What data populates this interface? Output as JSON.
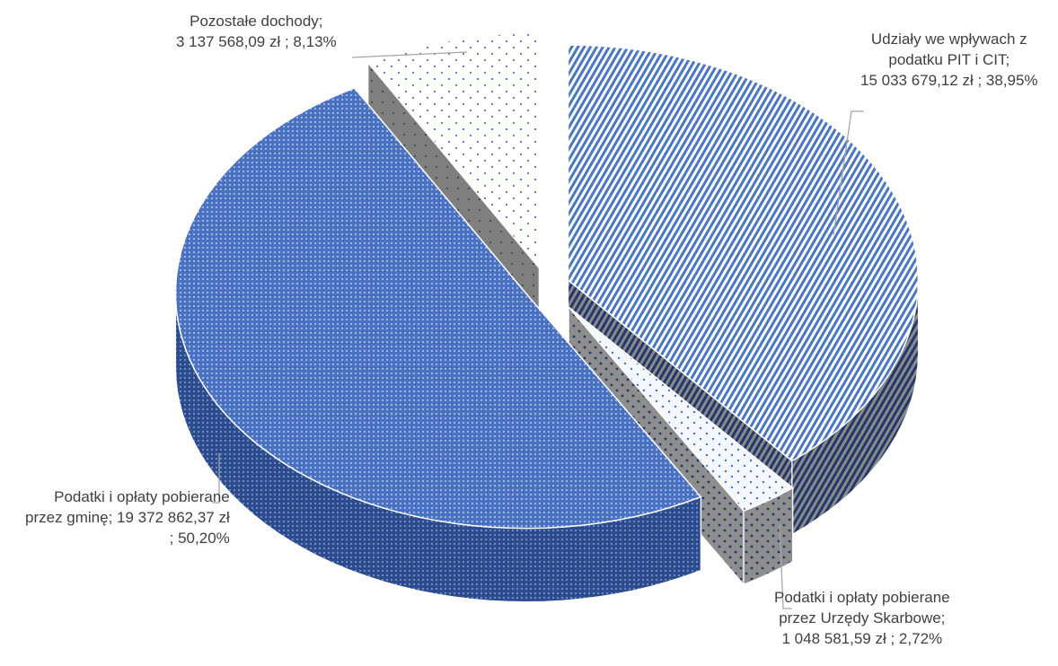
{
  "chart_data": {
    "type": "pie",
    "title": "",
    "currency_unit": "zł",
    "slices": [
      {
        "label": "Udziały we wpływach z podatku PIT i CIT",
        "value": 15033679.12,
        "percent": 38.95,
        "label_lines": [
          "Udziały we wpływach z",
          "podatku PIT i CIT;",
          "15 033 679,12 zł ; 38,95%"
        ],
        "pattern": "diagonal-stripes",
        "color": "#4472c4"
      },
      {
        "label": "Podatki i opłaty pobierane przez Urzędy Skarbowe",
        "value": 1048581.59,
        "percent": 2.72,
        "label_lines": [
          "Podatki i opłaty pobierane",
          "przez Urzędy Skarbowe;",
          "1 048 581,59 zł ; 2,72%"
        ],
        "pattern": "sparse-dots",
        "color": "#4472c4"
      },
      {
        "label": "Podatki i opłaty pobierane przez gminę",
        "value": 19372862.37,
        "percent": 50.2,
        "label_lines": [
          "Podatki i opłaty pobierane",
          "przez gminę;  19 372 862,37 zł",
          "; 50,20%"
        ],
        "pattern": "fine-grid",
        "color": "#4472c4"
      },
      {
        "label": "Pozostałe dochody",
        "value": 3137568.09,
        "percent": 8.13,
        "label_lines": [
          "Pozostałe dochody;",
          "3 137 568,09 zł ; 8,13%"
        ],
        "pattern": "light-dots",
        "color": "#4472c4"
      }
    ],
    "style": "3d-exploded",
    "legend": "none"
  }
}
